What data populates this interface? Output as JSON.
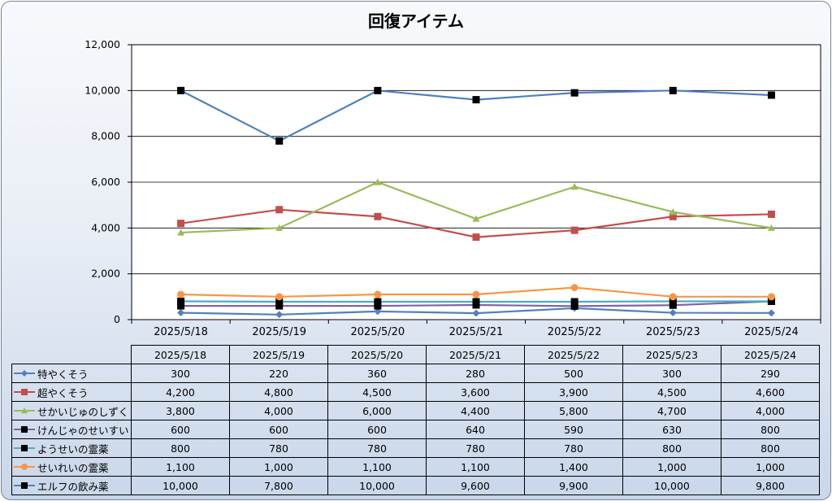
{
  "chart_data": {
    "type": "line",
    "title": "回復アイテム",
    "categories": [
      "2025/5/18",
      "2025/5/19",
      "2025/5/20",
      "2025/5/21",
      "2025/5/22",
      "2025/5/23",
      "2025/5/24"
    ],
    "ylim": [
      0,
      12000
    ],
    "yticks": [
      "0",
      "2,000",
      "4,000",
      "6,000",
      "8,000",
      "10,000",
      "12,000"
    ],
    "grid": true,
    "legend": "data-table",
    "series": [
      {
        "name": "特やくそう",
        "color": "#4f81bd",
        "marker": "diamond",
        "values": [
          300,
          220,
          360,
          280,
          500,
          300,
          290
        ],
        "labels": [
          "300",
          "220",
          "360",
          "280",
          "500",
          "300",
          "290"
        ]
      },
      {
        "name": "超やくそう",
        "color": "#c0504d",
        "marker": "square",
        "values": [
          4200,
          4800,
          4500,
          3600,
          3900,
          4500,
          4600
        ],
        "labels": [
          "4,200",
          "4,800",
          "4,500",
          "3,600",
          "3,900",
          "4,500",
          "4,600"
        ]
      },
      {
        "name": "せかいじゅのしずく",
        "color": "#9bbb59",
        "marker": "triangle",
        "values": [
          3800,
          4000,
          6000,
          4400,
          5800,
          4700,
          4000
        ],
        "labels": [
          "3,800",
          "4,000",
          "6,000",
          "4,400",
          "5,800",
          "4,700",
          "4,000"
        ]
      },
      {
        "name": "けんじゃのせいすい",
        "color": "#8064a2",
        "marker": "square",
        "markerColor": "#000000",
        "values": [
          600,
          600,
          600,
          640,
          590,
          630,
          800
        ],
        "labels": [
          "600",
          "600",
          "600",
          "640",
          "590",
          "630",
          "800"
        ]
      },
      {
        "name": "ようせいの霊薬",
        "color": "#4bacc6",
        "marker": "square",
        "markerColor": "#000000",
        "values": [
          800,
          780,
          780,
          780,
          780,
          800,
          800
        ],
        "labels": [
          "800",
          "780",
          "780",
          "780",
          "780",
          "800",
          "800"
        ]
      },
      {
        "name": "せいれいの霊薬",
        "color": "#f79646",
        "marker": "circle",
        "values": [
          1100,
          1000,
          1100,
          1100,
          1400,
          1000,
          1000
        ],
        "labels": [
          "1,100",
          "1,000",
          "1,100",
          "1,100",
          "1,400",
          "1,000",
          "1,000"
        ]
      },
      {
        "name": "エルフの飲み薬",
        "color": "#4f81bd",
        "marker": "square",
        "markerColor": "#000000",
        "values": [
          10000,
          7800,
          10000,
          9600,
          9900,
          10000,
          9800
        ],
        "labels": [
          "10,000",
          "7,800",
          "10,000",
          "9,600",
          "9,900",
          "10,000",
          "9,800"
        ]
      }
    ]
  }
}
